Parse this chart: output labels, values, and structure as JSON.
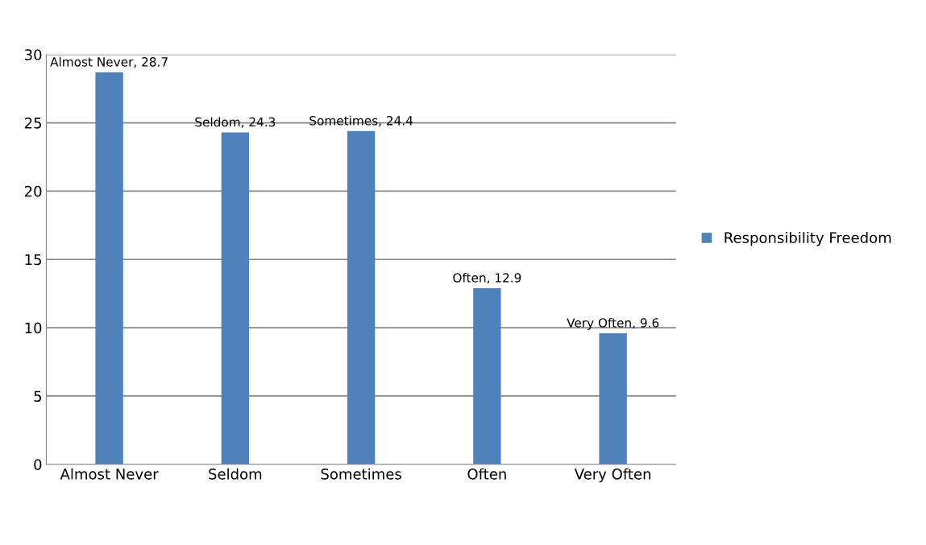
{
  "chart_data": {
    "type": "bar",
    "categories": [
      "Almost Never",
      "Seldom",
      "Sometimes",
      "Often",
      "Very Often"
    ],
    "series": [
      {
        "name": "Responsibility Freedom",
        "color": "#4f81bd",
        "values": [
          28.7,
          24.3,
          24.4,
          12.9,
          9.6
        ],
        "value_labels": [
          "Almost Never, 28.7",
          "Seldom, 24.3",
          "Sometimes, 24.4",
          "Often, 12.9",
          "Very Often, 9.6"
        ]
      }
    ],
    "ylim": [
      0,
      30
    ],
    "yticks": [
      0,
      5,
      10,
      15,
      20,
      25,
      30
    ],
    "grid": "y",
    "legend": "right"
  }
}
